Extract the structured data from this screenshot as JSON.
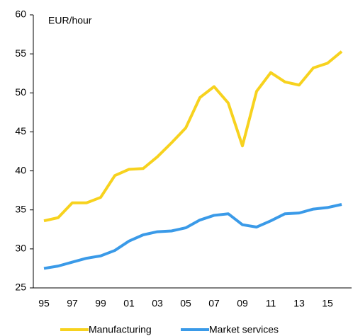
{
  "chart_data": {
    "type": "line",
    "annotation": "EUR/hour",
    "categories": [
      "95",
      null,
      "97",
      null,
      "99",
      null,
      "01",
      null,
      "03",
      null,
      "05",
      null,
      "07",
      null,
      "09",
      null,
      "11",
      null,
      "13",
      null,
      "15",
      null
    ],
    "series": [
      {
        "name": "Manufacturing",
        "color": "#f7d21e",
        "values": [
          33.6,
          34.0,
          35.9,
          35.9,
          36.6,
          39.4,
          40.2,
          40.3,
          41.8,
          43.6,
          45.5,
          49.4,
          50.8,
          48.7,
          43.2,
          50.2,
          52.6,
          51.4,
          51.0,
          53.2,
          53.8,
          55.3
        ]
      },
      {
        "name": "Market services",
        "color": "#3a9ae8",
        "values": [
          27.5,
          27.8,
          28.3,
          28.8,
          29.1,
          29.8,
          31.0,
          31.8,
          32.2,
          32.3,
          32.7,
          33.7,
          34.3,
          34.5,
          33.1,
          32.8,
          33.6,
          34.5,
          34.6,
          35.1,
          35.3,
          35.7
        ]
      }
    ],
    "ylim": [
      25,
      60
    ],
    "yticks": [
      25,
      30,
      35,
      40,
      45,
      50,
      55,
      60
    ],
    "grid": false
  }
}
